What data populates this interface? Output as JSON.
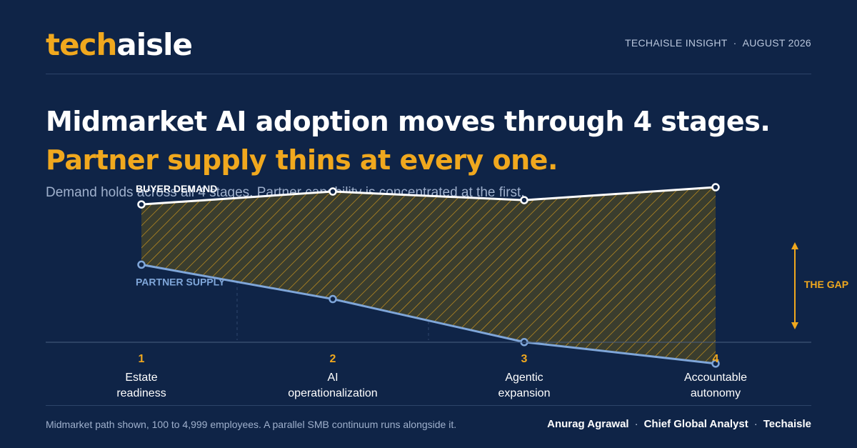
{
  "brand": {
    "logo_part1": "tech",
    "logo_part2": "aisle"
  },
  "header": {
    "meta_left": "TECHAISLE INSIGHT",
    "meta_sep": "·",
    "meta_right": "AUGUST 2026"
  },
  "headline": {
    "line1": "Midmarket AI adoption moves through 4 stages.",
    "line2": "Partner supply thins at every one."
  },
  "subtitle": "Demand holds across all 4 stages. Partner capability is concentrated at the first.",
  "chart_data": {
    "type": "line",
    "categories": [
      "Estate readiness",
      "AI operationalization",
      "Agentic expansion",
      "Accountable autonomy"
    ],
    "series": [
      {
        "name": "BUYER DEMAND",
        "values": [
          94,
          97,
          95,
          98
        ]
      },
      {
        "name": "PARTNER SUPPLY",
        "values": [
          80,
          72,
          62,
          57
        ]
      }
    ],
    "ylim": [
      50,
      100
    ],
    "annotation": "THE GAP",
    "gap_fill": "hatched",
    "grid": "vertical dashed separators",
    "colors": {
      "demand": "#ffffff",
      "supply": "#7fa6d9",
      "gap": "#f0a81e",
      "background": "#0f2447"
    }
  },
  "stages": [
    {
      "num": "1",
      "name": "Estate\nreadiness"
    },
    {
      "num": "2",
      "name": "AI\noperationalization"
    },
    {
      "num": "3",
      "name": "Agentic\nexpansion"
    },
    {
      "num": "4",
      "name": "Accountable\nautonomy"
    }
  ],
  "footer": {
    "note": "Midmarket path shown, 100 to 4,999 employees. A parallel SMB continuum runs alongside it.",
    "author": "Anurag Agrawal",
    "role": "Chief Global Analyst",
    "org": "Techaisle",
    "sep": "·"
  }
}
